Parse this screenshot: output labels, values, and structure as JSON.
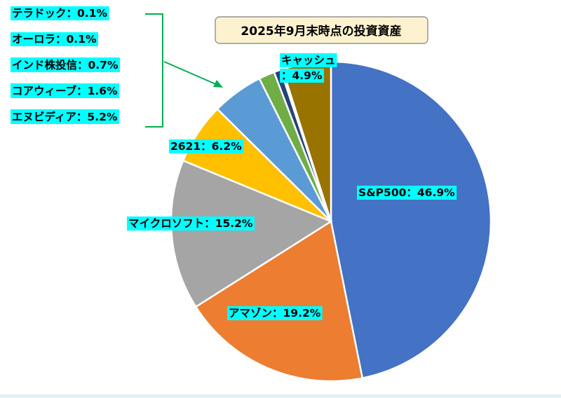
{
  "chart_data": {
    "type": "pie",
    "title": "2025年9月末時点の投資資産",
    "slices": [
      {
        "name": "S&P500",
        "value": 46.9,
        "label": "S&P500：46.9%",
        "color": "#4472c4"
      },
      {
        "name": "アマゾン",
        "value": 19.2,
        "label": "アマゾン：19.2%",
        "color": "#ed7d31"
      },
      {
        "name": "マイクロソフト",
        "value": 15.2,
        "label": "マイクロソフト：15.2%",
        "color": "#a5a5a5"
      },
      {
        "name": "2621",
        "value": 6.2,
        "label": "2621：6.2%",
        "color": "#ffc000"
      },
      {
        "name": "エヌビディア",
        "value": 5.2,
        "label": "エヌビディア：5.2%",
        "color": "#5b9bd5"
      },
      {
        "name": "コアウィーブ",
        "value": 1.6,
        "label": "コアウィーブ：1.6%",
        "color": "#70ad47"
      },
      {
        "name": "インド株投信",
        "value": 0.7,
        "label": "インド株投信：0.7%",
        "color": "#264478"
      },
      {
        "name": "オーロラ",
        "value": 0.1,
        "label": "オーロラ：0.1%",
        "color": "#9e480e"
      },
      {
        "name": "テラドック",
        "value": 0.1,
        "label": "テラドック：0.1%",
        "color": "#636363"
      },
      {
        "name": "キャッシュ",
        "value": 4.9,
        "label": "キャッシュ\n：4.9%",
        "color": "#997300"
      }
    ]
  },
  "style": {
    "label_bg": "#00ffff",
    "title_bg": "#fdf2d0",
    "title_border": "#7f7f7f",
    "bracket_color": "#00b050"
  }
}
